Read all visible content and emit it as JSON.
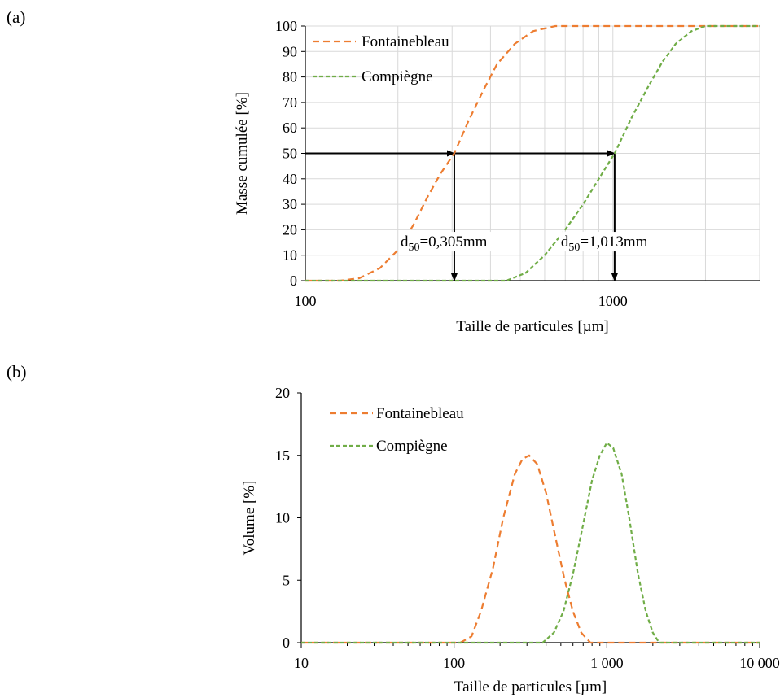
{
  "chart_data": [
    {
      "panel_label": "(a)",
      "type": "line",
      "xlabel": "Taille  de particules [µm]",
      "ylabel": "Masse cumulée [%]",
      "x_scale": "log",
      "xlim": [
        100,
        3000
      ],
      "ylim": [
        0,
        100
      ],
      "x_ticks": [
        "100",
        "1000"
      ],
      "y_ticks": [
        "0",
        "10",
        "20",
        "30",
        "40",
        "50",
        "60",
        "70",
        "80",
        "90",
        "100"
      ],
      "grid": true,
      "legend_position": "top-left",
      "series": [
        {
          "name": "Fontainebleau",
          "color": "#ED7D31",
          "x": [
            100,
            130,
            150,
            175,
            200,
            225,
            250,
            275,
            305,
            340,
            380,
            420,
            480,
            550,
            650,
            800,
            1000,
            3000
          ],
          "y": [
            0,
            0,
            1,
            5,
            12,
            22,
            33,
            42,
            50,
            63,
            75,
            85,
            93,
            98,
            100,
            100,
            100,
            100
          ]
        },
        {
          "name": "Compiègne",
          "color": "#70AD47",
          "x": [
            100,
            300,
            450,
            520,
            600,
            700,
            800,
            900,
            1013,
            1150,
            1300,
            1450,
            1600,
            1800,
            2000,
            3000
          ],
          "y": [
            0,
            0,
            0,
            3,
            10,
            20,
            30,
            40,
            50,
            64,
            76,
            86,
            93,
            98,
            100,
            100
          ]
        }
      ],
      "annotations": [
        {
          "type": "arrow",
          "from_x": 100,
          "from_y": 50,
          "to_x": 305,
          "to_y": 50
        },
        {
          "type": "arrow",
          "from_x": 305,
          "from_y": 50,
          "to_x": 1013,
          "to_y": 50
        },
        {
          "type": "arrow",
          "from_x": 305,
          "from_y": 50,
          "to_x": 305,
          "to_y": 0
        },
        {
          "type": "arrow",
          "from_x": 1013,
          "from_y": 50,
          "to_x": 1013,
          "to_y": 0
        },
        {
          "type": "text",
          "base": "d",
          "sub": "50",
          "rest": "=0,305mm",
          "x": 305,
          "y": 15
        },
        {
          "type": "text",
          "base": "d",
          "sub": "50",
          "rest": "=1,013mm",
          "x": 1013,
          "y": 15
        }
      ]
    },
    {
      "panel_label": "(b)",
      "type": "line",
      "xlabel": "Taille  de particules [µm]",
      "ylabel": "Volume [%]",
      "x_scale": "log",
      "xlim": [
        10,
        10000
      ],
      "ylim": [
        0,
        20
      ],
      "x_ticks": [
        "10",
        "100",
        "1 000",
        "10 000"
      ],
      "y_ticks": [
        "0",
        "5",
        "10",
        "15",
        "20"
      ],
      "grid": false,
      "legend_position": "top-left",
      "series": [
        {
          "name": "Fontainebleau",
          "color": "#ED7D31",
          "x": [
            10,
            110,
            130,
            150,
            180,
            210,
            250,
            280,
            310,
            350,
            400,
            460,
            530,
            600,
            680,
            780,
            10000
          ],
          "y": [
            0,
            0,
            0.5,
            2.5,
            6,
            10,
            13.5,
            14.7,
            15,
            14.3,
            12,
            8.5,
            5,
            2.5,
            0.8,
            0,
            0
          ]
        },
        {
          "name": "Compiègne",
          "color": "#70AD47",
          "x": [
            10,
            380,
            450,
            520,
            600,
            700,
            800,
            900,
            1000,
            1100,
            1250,
            1400,
            1600,
            1800,
            2000,
            2200,
            10000
          ],
          "y": [
            0,
            0,
            0.8,
            2.5,
            5.5,
            9.5,
            13,
            15,
            16,
            15.6,
            13.5,
            10,
            5.5,
            2.5,
            0.8,
            0,
            0
          ]
        }
      ]
    }
  ]
}
